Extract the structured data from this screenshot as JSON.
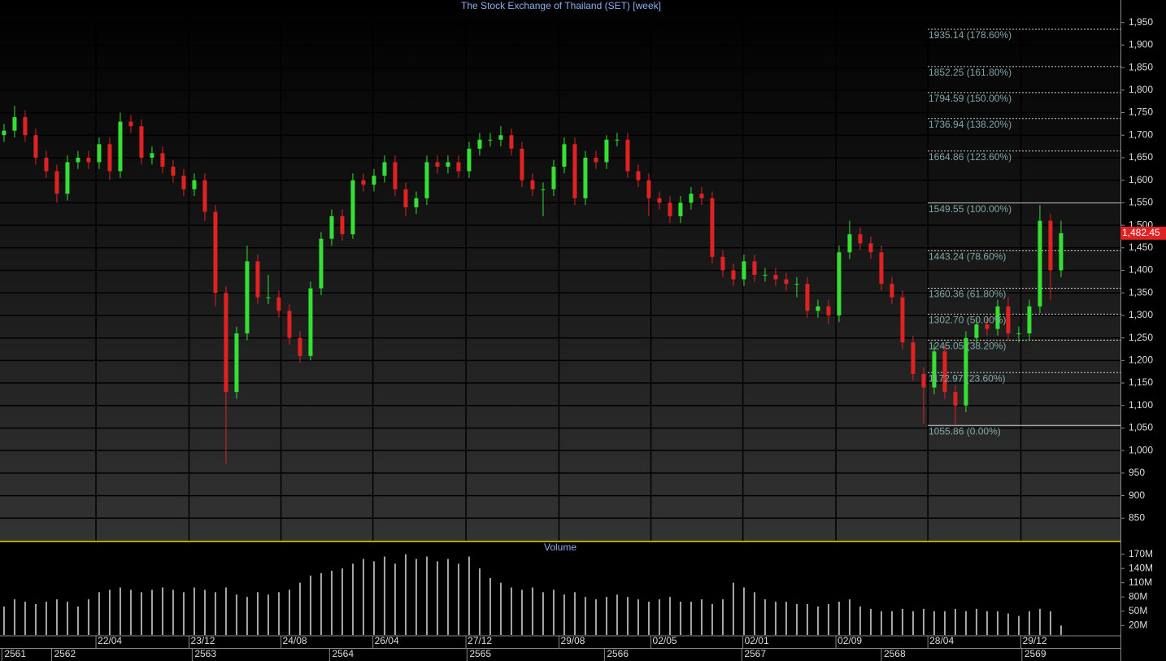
{
  "chart_data": {
    "type": "candlestick",
    "title": "The Stock Exchange of Thailand (SET) [week]",
    "up_color": "#33e033",
    "down_color": "#e02222",
    "open": [
      1700,
      1710,
      1740,
      1700,
      1650,
      1620,
      1570,
      1640,
      1650,
      1640,
      1680,
      1620,
      1730,
      1720,
      1650,
      1660,
      1630,
      1610,
      1580,
      1600,
      1530,
      1350,
      1130,
      1260,
      1420,
      1340,
      1340,
      1310,
      1250,
      1210,
      1360,
      1470,
      1520,
      1480,
      1600,
      1590,
      1610,
      1640,
      1580,
      1540,
      1560,
      1640,
      1630,
      1640,
      1620,
      1670,
      1690,
      1690,
      1700,
      1670,
      1600,
      1580,
      1580,
      1630,
      1680,
      1560,
      1650,
      1640,
      1690,
      1690,
      1620,
      1600,
      1560,
      1550,
      1520,
      1550,
      1570,
      1560,
      1430,
      1400,
      1380,
      1420,
      1390,
      1390,
      1380,
      1370,
      1370,
      1310,
      1320,
      1300,
      1440,
      1480,
      1460,
      1440,
      1370,
      1340,
      1240,
      1170,
      1140,
      1220,
      1130,
      1100,
      1250,
      1280,
      1270,
      1320,
      1260,
      1260,
      1320,
      1510,
      1400
    ],
    "high": [
      1725,
      1765,
      1755,
      1715,
      1665,
      1635,
      1655,
      1665,
      1665,
      1695,
      1695,
      1750,
      1745,
      1735,
      1675,
      1675,
      1645,
      1625,
      1615,
      1615,
      1545,
      1365,
      1275,
      1455,
      1435,
      1390,
      1355,
      1325,
      1265,
      1375,
      1485,
      1535,
      1535,
      1615,
      1615,
      1625,
      1655,
      1655,
      1595,
      1575,
      1655,
      1655,
      1655,
      1655,
      1685,
      1705,
      1705,
      1720,
      1715,
      1685,
      1615,
      1595,
      1645,
      1695,
      1695,
      1665,
      1665,
      1700,
      1705,
      1705,
      1635,
      1615,
      1575,
      1565,
      1565,
      1585,
      1585,
      1575,
      1445,
      1415,
      1435,
      1435,
      1405,
      1405,
      1395,
      1385,
      1385,
      1335,
      1335,
      1455,
      1510,
      1495,
      1475,
      1455,
      1385,
      1355,
      1255,
      1185,
      1235,
      1235,
      1145,
      1265,
      1295,
      1295,
      1335,
      1340,
      1275,
      1335,
      1545,
      1525,
      1510
    ],
    "low": [
      1685,
      1695,
      1685,
      1635,
      1605,
      1550,
      1555,
      1625,
      1625,
      1625,
      1600,
      1605,
      1705,
      1635,
      1635,
      1615,
      1595,
      1565,
      1565,
      1510,
      1320,
      970,
      1115,
      1245,
      1325,
      1325,
      1295,
      1235,
      1195,
      1200,
      1345,
      1455,
      1465,
      1470,
      1575,
      1575,
      1595,
      1565,
      1520,
      1525,
      1545,
      1615,
      1615,
      1605,
      1605,
      1655,
      1675,
      1675,
      1655,
      1585,
      1565,
      1520,
      1565,
      1615,
      1545,
      1545,
      1625,
      1625,
      1675,
      1605,
      1585,
      1520,
      1535,
      1505,
      1505,
      1535,
      1545,
      1415,
      1385,
      1365,
      1365,
      1375,
      1375,
      1365,
      1355,
      1340,
      1295,
      1295,
      1280,
      1285,
      1425,
      1445,
      1425,
      1355,
      1325,
      1225,
      1155,
      1060,
      1125,
      1115,
      1056,
      1085,
      1235,
      1255,
      1255,
      1245,
      1240,
      1245,
      1305,
      1335,
      1385
    ],
    "close": [
      1710,
      1740,
      1700,
      1650,
      1620,
      1570,
      1640,
      1650,
      1640,
      1680,
      1620,
      1730,
      1720,
      1650,
      1660,
      1630,
      1610,
      1580,
      1600,
      1530,
      1350,
      1130,
      1260,
      1420,
      1340,
      1340,
      1310,
      1250,
      1210,
      1360,
      1470,
      1520,
      1480,
      1600,
      1590,
      1610,
      1640,
      1580,
      1540,
      1560,
      1640,
      1630,
      1640,
      1620,
      1670,
      1690,
      1690,
      1700,
      1670,
      1600,
      1580,
      1580,
      1630,
      1680,
      1560,
      1650,
      1640,
      1690,
      1690,
      1620,
      1600,
      1560,
      1550,
      1520,
      1550,
      1570,
      1560,
      1430,
      1400,
      1380,
      1420,
      1390,
      1390,
      1380,
      1370,
      1370,
      1310,
      1320,
      1300,
      1440,
      1480,
      1460,
      1440,
      1370,
      1340,
      1240,
      1170,
      1140,
      1220,
      1130,
      1100,
      1250,
      1280,
      1270,
      1320,
      1260,
      1260,
      1320,
      1510,
      1400,
      1482.45
    ],
    "ylim": [
      800,
      2000
    ],
    "yticks": [
      850,
      900,
      950,
      {
        "value": 1000,
        "label": "1,000"
      },
      {
        "value": 1050,
        "label": "1,050"
      },
      {
        "value": 1100,
        "label": "1,100"
      },
      {
        "value": 1150,
        "label": "1,150"
      },
      {
        "value": 1200,
        "label": "1,200"
      },
      {
        "value": 1250,
        "label": "1,250"
      },
      {
        "value": 1300,
        "label": "1,300"
      },
      {
        "value": 1350,
        "label": "1,350"
      },
      {
        "value": 1400,
        "label": "1,400"
      },
      {
        "value": 1450,
        "label": "1,450"
      },
      {
        "value": 1500,
        "label": "1,500"
      },
      {
        "value": 1550,
        "label": "1,550"
      },
      {
        "value": 1600,
        "label": "1,600"
      },
      {
        "value": 1650,
        "label": "1,650"
      },
      {
        "value": 1700,
        "label": "1,700"
      },
      {
        "value": 1750,
        "label": "1,750"
      },
      {
        "value": 1800,
        "label": "1,800"
      },
      {
        "value": 1850,
        "label": "1,850"
      },
      {
        "value": 1900,
        "label": "1,900"
      },
      {
        "value": 1950,
        "label": "1,950"
      }
    ],
    "xlim": [
      -0.38,
      105.62
    ],
    "xticks": [
      {
        "value": 8.7,
        "label": "22/04"
      },
      {
        "value": 17.5,
        "label": "23/12"
      },
      {
        "value": 26.2,
        "label": "24/08"
      },
      {
        "value": 34.9,
        "label": "26/04"
      },
      {
        "value": 43.7,
        "label": "27/12"
      },
      {
        "value": 52.5,
        "label": "29/08"
      },
      {
        "value": 61.2,
        "label": "02/05"
      },
      {
        "value": 69.9,
        "label": "02/01"
      },
      {
        "value": 78.7,
        "label": "02/09"
      },
      {
        "value": 87.4,
        "label": "28/04"
      },
      {
        "value": 96.2,
        "label": "29/12"
      }
    ],
    "year_ticks": [
      {
        "value": -0.2,
        "label": "2561"
      },
      {
        "value": 4.5,
        "label": "2562"
      },
      {
        "value": 17.8,
        "label": "2563"
      },
      {
        "value": 30.8,
        "label": "2564"
      },
      {
        "value": 43.8,
        "label": "2565"
      },
      {
        "value": 56.8,
        "label": "2566"
      },
      {
        "value": 69.8,
        "label": "2567"
      },
      {
        "value": 83,
        "label": "2568"
      },
      {
        "value": 96.3,
        "label": "2569"
      }
    ],
    "fib_levels": [
      {
        "value": 1935.14,
        "label": "1935.14 (178.60%)",
        "dashed": true
      },
      {
        "value": 1852.25,
        "label": "1852.25 (161.80%)",
        "dashed": true
      },
      {
        "value": 1794.59,
        "label": "1794.59 (150.00%)",
        "dashed": true
      },
      {
        "value": 1736.94,
        "label": "1736.94 (138.20%)",
        "dashed": true
      },
      {
        "value": 1664.86,
        "label": "1664.86 (123.60%)",
        "dashed": true
      },
      {
        "value": 1549.55,
        "label": "1549.55 (100.00%)",
        "dashed": false
      },
      {
        "value": 1443.24,
        "label": "1443.24 (78.60%)",
        "dashed": true
      },
      {
        "value": 1360.36,
        "label": "1360.36 (61.80%)",
        "dashed": true
      },
      {
        "value": 1302.7,
        "label": "1302.70 (50.00%)",
        "dashed": true
      },
      {
        "value": 1245.05,
        "label": "1245.05 (38.20%)",
        "dashed": true
      },
      {
        "value": 1172.97,
        "label": "1172.97 (23.60%)",
        "dashed": true
      },
      {
        "value": 1055.86,
        "label": "1055.86 (0.00%)",
        "dashed": false
      }
    ],
    "last_price": {
      "value": 1482.45,
      "label": "1,482.45"
    },
    "volume": {
      "title": "Volume",
      "color": "#a8a8a8",
      "values": [
        60,
        75,
        70,
        65,
        70,
        75,
        70,
        60,
        75,
        90,
        95,
        100,
        95,
        90,
        95,
        100,
        95,
        90,
        100,
        95,
        90,
        100,
        85,
        80,
        90,
        85,
        90,
        95,
        110,
        125,
        130,
        135,
        140,
        150,
        160,
        155,
        165,
        150,
        170,
        160,
        165,
        155,
        160,
        150,
        165,
        140,
        120,
        110,
        100,
        95,
        100,
        90,
        95,
        85,
        90,
        80,
        75,
        80,
        85,
        80,
        75,
        70,
        75,
        80,
        70,
        70,
        75,
        65,
        75,
        110,
        100,
        90,
        75,
        70,
        70,
        65,
        65,
        60,
        65,
        70,
        75,
        60,
        55,
        50,
        50,
        55,
        50,
        55,
        50,
        50,
        55,
        50,
        55,
        50,
        50,
        45,
        40,
        50,
        55,
        50,
        20
      ],
      "ylim": [
        0,
        195
      ],
      "yticks": [
        {
          "value": 20,
          "label": "20M"
        },
        {
          "value": 50,
          "label": "50M"
        },
        {
          "value": 80,
          "label": "80M"
        },
        {
          "value": 110,
          "label": "110M"
        },
        {
          "value": 140,
          "label": "140M"
        },
        {
          "value": 170,
          "label": "170M"
        }
      ]
    }
  }
}
